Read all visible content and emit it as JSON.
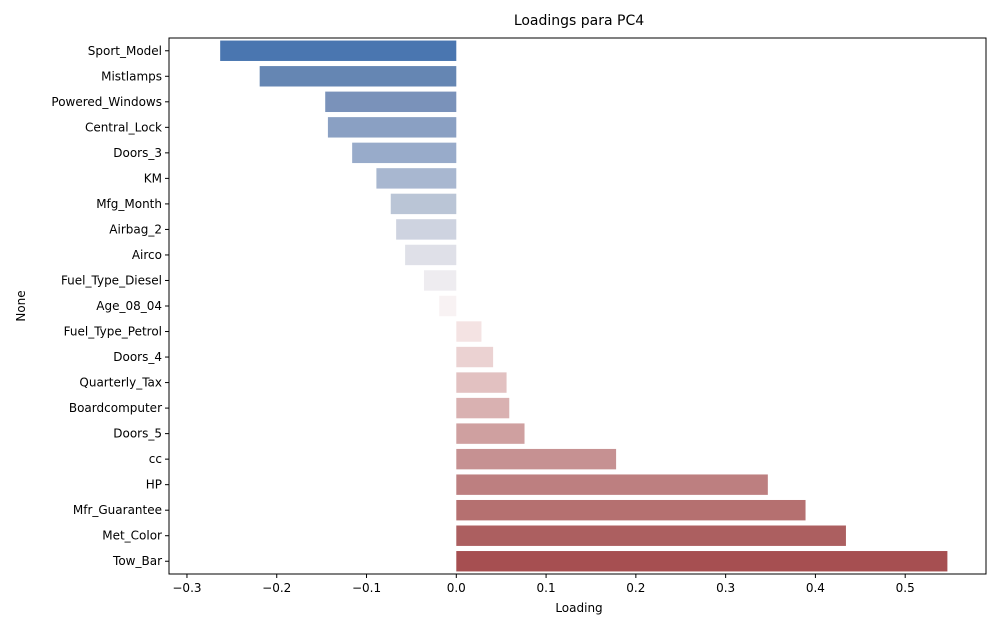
{
  "chart_data": {
    "type": "bar",
    "orientation": "horizontal",
    "title": "Loadings para PC4",
    "xlabel": "Loading",
    "ylabel": "None",
    "xlim": [
      -0.32,
      0.59
    ],
    "xticks": [
      -0.3,
      -0.2,
      -0.1,
      0.0,
      0.1,
      0.2,
      0.3,
      0.4,
      0.5
    ],
    "xtick_labels": [
      "−0.3",
      "−0.2",
      "−0.1",
      "0.0",
      "0.1",
      "0.2",
      "0.3",
      "0.4",
      "0.5"
    ],
    "grid": false,
    "palette": "blue-white-red diverging",
    "categories": [
      "Sport_Model",
      "Mistlamps",
      "Powered_Windows",
      "Central_Lock",
      "Doors_3",
      "KM",
      "Mfg_Month",
      "Airbag_2",
      "Airco",
      "Fuel_Type_Diesel",
      "Age_08_04",
      "Fuel_Type_Petrol",
      "Doors_4",
      "Quarterly_Tax",
      "Boardcomputer",
      "Doors_5",
      "cc",
      "HP",
      "Mfr_Guarantee",
      "Met_Color",
      "Tow_Bar"
    ],
    "values": [
      -0.263,
      -0.219,
      -0.146,
      -0.143,
      -0.116,
      -0.089,
      -0.073,
      -0.067,
      -0.057,
      -0.036,
      -0.019,
      0.028,
      0.041,
      0.056,
      0.059,
      0.076,
      0.178,
      0.347,
      0.389,
      0.434,
      0.547
    ],
    "colors": [
      "#4a76b0",
      "#6586b3",
      "#7a92ba",
      "#8aa0c3",
      "#98abca",
      "#a8b7d0",
      "#bac5d6",
      "#ced3e0",
      "#dfe0e8",
      "#eeecf0",
      "#f8f2f3",
      "#f4e3e3",
      "#ebd2d2",
      "#e2c1c1",
      "#d9b1b1",
      "#cfa0a0",
      "#c69192",
      "#bd7f80",
      "#b57070",
      "#ac5f60",
      "#a64f51"
    ]
  }
}
